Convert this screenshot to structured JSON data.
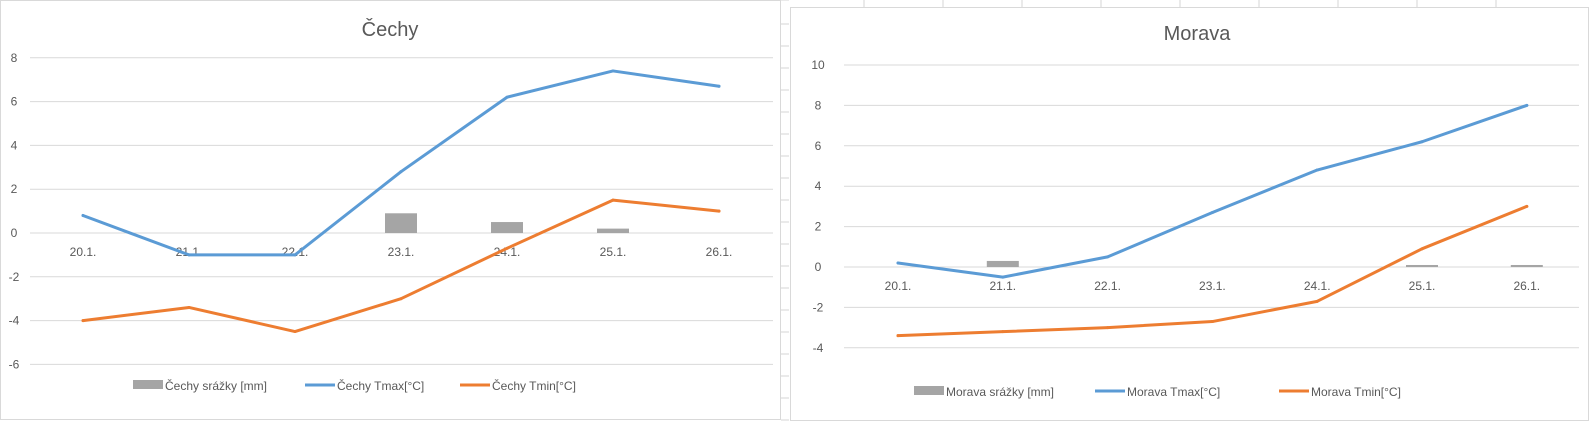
{
  "colors": {
    "rain": "#a5a5a5",
    "tmax": "#5b9bd5",
    "tmin": "#ed7d31",
    "grid": "#d9d9d9",
    "text": "#595959"
  },
  "chart_data": [
    {
      "type": "bar+line",
      "title": "Čechy",
      "categories": [
        "20.1.",
        "21.1.",
        "22.1.",
        "23.1.",
        "24.1.",
        "25.1.",
        "26.1."
      ],
      "ylim": [
        -6,
        8
      ],
      "yticks": [
        "8",
        "6",
        "4",
        "2",
        "0",
        "-2",
        "-4",
        "-6"
      ],
      "grid": true,
      "legend_position": "bottom",
      "series": [
        {
          "name": "Čechy srážky [mm]",
          "kind": "bar",
          "values": [
            0,
            0,
            0,
            0.9,
            0.5,
            0.2,
            0
          ]
        },
        {
          "name": "Čechy Tmax[°C]",
          "kind": "line",
          "values": [
            0.8,
            -1,
            -1,
            2.8,
            6.2,
            7.4,
            6.7
          ]
        },
        {
          "name": "Čechy Tmin[°C]",
          "kind": "line",
          "values": [
            -4,
            -3.4,
            -4.5,
            -3,
            -0.7,
            1.5,
            1.0
          ]
        }
      ]
    },
    {
      "type": "bar+line",
      "title": "Morava",
      "categories": [
        "20.1.",
        "21.1.",
        "22.1.",
        "23.1.",
        "24.1.",
        "25.1.",
        "26.1."
      ],
      "ylim": [
        -4,
        10
      ],
      "yticks": [
        "10",
        "8",
        "6",
        "4",
        "2",
        "0",
        "-2",
        "-4"
      ],
      "grid": true,
      "legend_position": "bottom",
      "series": [
        {
          "name": "Morava srážky [mm]",
          "kind": "bar",
          "values": [
            0,
            0.3,
            0,
            0,
            0,
            0.1,
            0.1
          ]
        },
        {
          "name": "Morava Tmax[°C]",
          "kind": "line",
          "values": [
            0.2,
            -0.5,
            0.5,
            2.7,
            4.8,
            6.2,
            8
          ]
        },
        {
          "name": "Morava Tmin[°C]",
          "kind": "line",
          "values": [
            -3.4,
            -3.2,
            -3.0,
            -2.7,
            -1.7,
            0.9,
            3.0
          ]
        }
      ]
    }
  ]
}
